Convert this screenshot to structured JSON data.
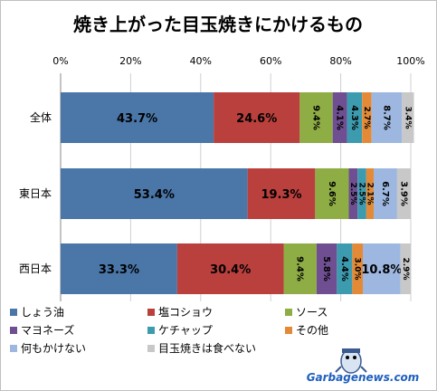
{
  "chart_data": {
    "type": "bar",
    "orientation": "horizontal",
    "stacked": "percent",
    "title": "焼き上がった目玉焼きにかけるもの",
    "categories": [
      "全体",
      "東日本",
      "西日本"
    ],
    "xlim": [
      0,
      100
    ],
    "x_ticks": [
      "0%",
      "20%",
      "40%",
      "60%",
      "80%",
      "100%"
    ],
    "grid": true,
    "legend_position": "bottom",
    "series": [
      {
        "name": "しょう油",
        "color": "#4a76a8",
        "values": [
          43.7,
          53.4,
          33.3
        ],
        "labels": [
          "43.7%",
          "53.4%",
          "33.3%"
        ]
      },
      {
        "name": "塩コショウ",
        "color": "#b9403d",
        "values": [
          24.6,
          19.3,
          30.4
        ],
        "labels": [
          "24.6%",
          "19.3%",
          "30.4%"
        ]
      },
      {
        "name": "ソース",
        "color": "#8fad45",
        "values": [
          9.4,
          9.6,
          9.4
        ],
        "labels": [
          "9.4%",
          "9.6%",
          "9.4%"
        ]
      },
      {
        "name": "マヨネーズ",
        "color": "#6f4f92",
        "values": [
          4.1,
          2.5,
          5.8
        ],
        "labels": [
          "4.1%",
          "2.5%",
          "5.8%"
        ]
      },
      {
        "name": "ケチャップ",
        "color": "#3d9bb0",
        "values": [
          4.3,
          2.5,
          4.4
        ],
        "labels": [
          "4.3%",
          "2.5%",
          "4.4%"
        ]
      },
      {
        "name": "その他",
        "color": "#e48a36",
        "values": [
          2.7,
          2.1,
          3.0
        ],
        "labels": [
          "2.7%",
          "2.1%",
          "3.0%"
        ]
      },
      {
        "name": "何もかけない",
        "color": "#9db7e0",
        "values": [
          8.7,
          6.7,
          10.8
        ],
        "labels": [
          "8.7%",
          "6.7%",
          "10.8%"
        ]
      },
      {
        "name": "目玉焼きは食べない",
        "color": "#c8c8c8",
        "values": [
          3.4,
          3.9,
          2.9
        ],
        "labels": [
          "3.4%",
          "3.9%",
          "2.9%"
        ]
      }
    ]
  },
  "watermark": "Garbagenews.com"
}
